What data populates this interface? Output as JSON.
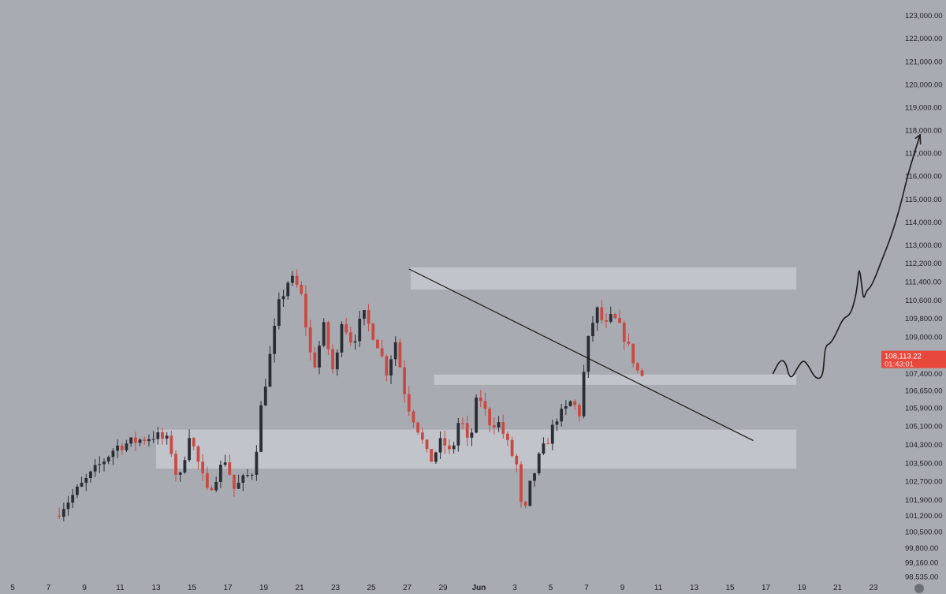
{
  "chart_data": {
    "type": "candlestick",
    "y_axis": {
      "position": "right",
      "ylim": [
        98300,
        123400
      ],
      "ticks": [
        {
          "value": 123000,
          "label": "123,000.00"
        },
        {
          "value": 122000,
          "label": "122,000.00"
        },
        {
          "value": 121000,
          "label": "121,000.00"
        },
        {
          "value": 120000,
          "label": "120,000.00"
        },
        {
          "value": 119000,
          "label": "119,000.00"
        },
        {
          "value": 118000,
          "label": "118,000.00"
        },
        {
          "value": 117000,
          "label": "117,000.00"
        },
        {
          "value": 116000,
          "label": "116,000.00"
        },
        {
          "value": 115000,
          "label": "115,000.00"
        },
        {
          "value": 114000,
          "label": "114,000.00"
        },
        {
          "value": 113000,
          "label": "113,000.00"
        },
        {
          "value": 112200,
          "label": "112,200.00"
        },
        {
          "value": 111400,
          "label": "111,400.00"
        },
        {
          "value": 110600,
          "label": "110,600.00"
        },
        {
          "value": 109800,
          "label": "109,800.00"
        },
        {
          "value": 109000,
          "label": "109,000.00"
        },
        {
          "value": 107400,
          "label": "107,400.00"
        },
        {
          "value": 106650,
          "label": "106,650.00"
        },
        {
          "value": 105900,
          "label": "105,900.00"
        },
        {
          "value": 105100,
          "label": "105,100.00"
        },
        {
          "value": 104300,
          "label": "104,300.00"
        },
        {
          "value": 103500,
          "label": "103,500.00"
        },
        {
          "value": 102700,
          "label": "102,700.00"
        },
        {
          "value": 101900,
          "label": "101,900.00"
        },
        {
          "value": 101200,
          "label": "101,200.00"
        },
        {
          "value": 100500,
          "label": "100,500.00"
        },
        {
          "value": 99800,
          "label": "99,800.00"
        },
        {
          "value": 99160,
          "label": "99,160.00"
        },
        {
          "value": 98535,
          "label": "98,535.00"
        }
      ]
    },
    "x_axis": {
      "tick_labels": [
        "5",
        "7",
        "9",
        "11",
        "13",
        "15",
        "17",
        "19",
        "21",
        "23",
        "25",
        "27",
        "29",
        "Jun",
        "3",
        "5",
        "7",
        "9",
        "11",
        "13",
        "15",
        "17",
        "19",
        "21",
        "23"
      ]
    },
    "price_label": {
      "price": "108,113.22",
      "countdown": "01:43:01"
    },
    "zones": [
      {
        "x_start": 22.2,
        "x_end": 43.7,
        "low": 111050,
        "high": 112020
      },
      {
        "x_start": 23.5,
        "x_end": 43.7,
        "low": 106900,
        "high": 107350
      },
      {
        "x_start": 8.0,
        "x_end": 43.7,
        "low": 103250,
        "high": 104950
      }
    ],
    "trendline": {
      "start": [
        22.1,
        111950
      ],
      "end": [
        41.3,
        104470
      ]
    },
    "projection": [
      [
        42.4,
        107400
      ],
      [
        42.8,
        108000
      ],
      [
        43.1,
        107900
      ],
      [
        43.3,
        107250
      ],
      [
        43.5,
        107250
      ],
      [
        43.8,
        107700
      ],
      [
        44.1,
        108000
      ],
      [
        44.4,
        107700
      ],
      [
        44.7,
        107250
      ],
      [
        45.0,
        107150
      ],
      [
        45.2,
        107400
      ],
      [
        45.3,
        108600
      ],
      [
        45.6,
        108700
      ],
      [
        45.9,
        109100
      ],
      [
        46.3,
        109800
      ],
      [
        46.7,
        109950
      ],
      [
        46.95,
        110550
      ],
      [
        47.1,
        111200
      ],
      [
        47.2,
        112100
      ],
      [
        47.35,
        111200
      ],
      [
        47.45,
        110600
      ],
      [
        47.6,
        111000
      ],
      [
        47.9,
        111200
      ],
      [
        48.5,
        112400
      ],
      [
        49.0,
        113400
      ],
      [
        49.5,
        114700
      ],
      [
        49.9,
        116000
      ],
      [
        50.3,
        117050
      ],
      [
        50.6,
        117800
      ]
    ],
    "arrowhead": {
      "tip": [
        50.6,
        117800
      ],
      "wing1": [
        50.35,
        117650
      ],
      "wing2": [
        50.62,
        117400
      ]
    },
    "colors": {
      "background": "#a9abb2",
      "up": "#2b2d34",
      "down": "#c94a42",
      "zone": "#c6c8cf",
      "line": "#1a1a1a",
      "price_tag": "#e8473c"
    },
    "anchors": [
      [
        0,
        98900
      ],
      [
        6,
        104200
      ],
      [
        8.2,
        104700
      ],
      [
        9.0,
        104400
      ],
      [
        9.5,
        102500
      ],
      [
        10.1,
        104800
      ],
      [
        11.1,
        102200
      ],
      [
        12.2,
        103800
      ],
      [
        12.5,
        102300
      ],
      [
        13.7,
        103200
      ],
      [
        14.1,
        105900
      ],
      [
        14.5,
        107700
      ],
      [
        15.1,
        110400
      ],
      [
        15.7,
        111600
      ],
      [
        16.3,
        111000
      ],
      [
        17.0,
        107500
      ],
      [
        17.6,
        109400
      ],
      [
        18.2,
        107200
      ],
      [
        18.6,
        109800
      ],
      [
        19.2,
        108700
      ],
      [
        19.8,
        110000
      ],
      [
        20.6,
        108700
      ],
      [
        21.1,
        107500
      ],
      [
        21.6,
        108800
      ],
      [
        22.2,
        106200
      ],
      [
        22.9,
        104900
      ],
      [
        23.5,
        103500
      ],
      [
        24.2,
        104500
      ],
      [
        24.7,
        103800
      ],
      [
        25.2,
        105600
      ],
      [
        25.7,
        104100
      ],
      [
        26.2,
        106600
      ],
      [
        26.8,
        105300
      ],
      [
        27.4,
        105200
      ],
      [
        27.9,
        104200
      ],
      [
        28.4,
        103300
      ],
      [
        28.7,
        100800
      ],
      [
        29.1,
        102500
      ],
      [
        29.6,
        103700
      ],
      [
        30.2,
        104700
      ],
      [
        30.6,
        105500
      ],
      [
        31.0,
        105700
      ],
      [
        31.4,
        106200
      ],
      [
        31.9,
        105600
      ],
      [
        32.1,
        107400
      ],
      [
        32.4,
        109100
      ],
      [
        32.8,
        110200
      ],
      [
        33.3,
        109400
      ],
      [
        33.7,
        109900
      ],
      [
        34.3,
        109100
      ],
      [
        34.8,
        108100
      ],
      [
        35.2,
        107300
      ]
    ],
    "ohlc_seed": 7
  }
}
